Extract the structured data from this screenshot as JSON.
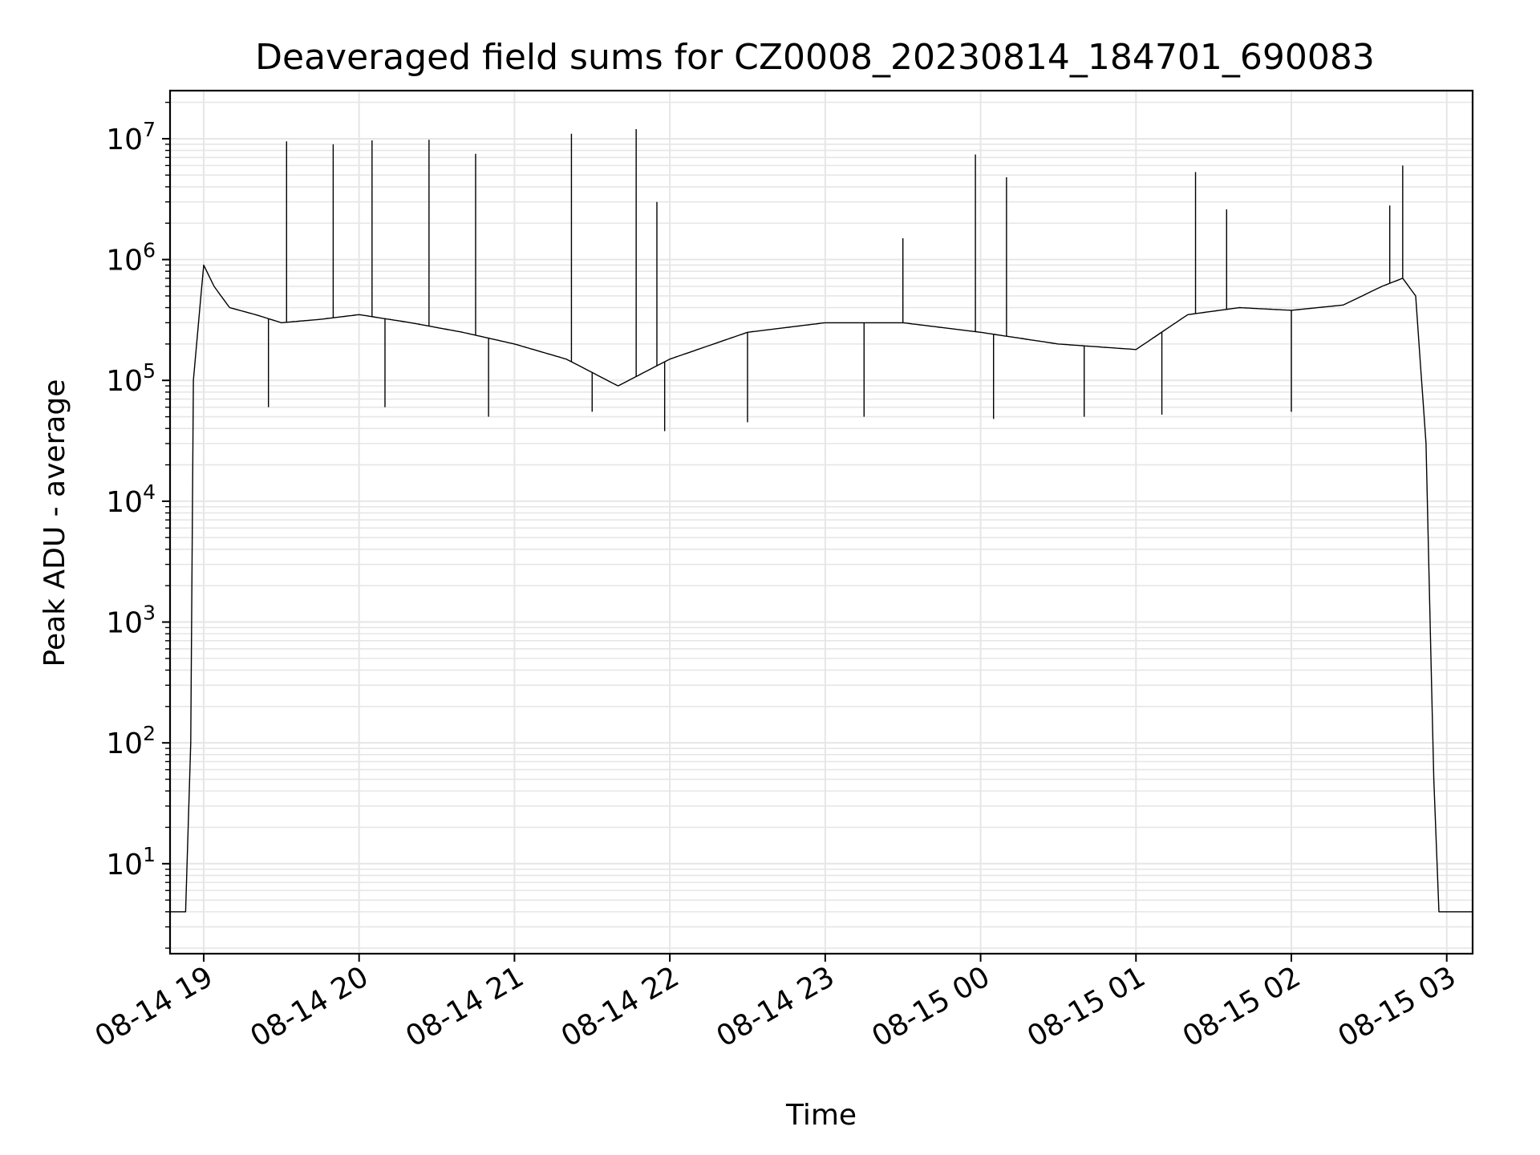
{
  "chart_data": {
    "type": "line",
    "title": "Deaveraged field sums for CZ0008_20230814_184701_690083",
    "xlabel": "Time",
    "ylabel": "Peak ADU - average",
    "yscale": "log",
    "ylim": [
      1.8,
      25000000
    ],
    "xlim": [
      "2023-08-14 18:47",
      "2023-08-15 03:10"
    ],
    "grid": true,
    "grid_minor": true,
    "legend": "none",
    "line_color": "#000000",
    "grid_color": "#e6e6e6",
    "x_ticks": [
      {
        "x": "2023-08-14 19:00",
        "label": "08-14 19"
      },
      {
        "x": "2023-08-14 20:00",
        "label": "08-14 20"
      },
      {
        "x": "2023-08-14 21:00",
        "label": "08-14 21"
      },
      {
        "x": "2023-08-14 22:00",
        "label": "08-14 22"
      },
      {
        "x": "2023-08-14 23:00",
        "label": "08-14 23"
      },
      {
        "x": "2023-08-15 00:00",
        "label": "08-15 00"
      },
      {
        "x": "2023-08-15 01:00",
        "label": "08-15 01"
      },
      {
        "x": "2023-08-15 02:00",
        "label": "08-15 02"
      },
      {
        "x": "2023-08-15 03:00",
        "label": "08-15 03"
      }
    ],
    "y_ticks": [
      {
        "value": 10,
        "base": "10",
        "exp": "1"
      },
      {
        "value": 100,
        "base": "10",
        "exp": "2"
      },
      {
        "value": 1000,
        "base": "10",
        "exp": "3"
      },
      {
        "value": 10000,
        "base": "10",
        "exp": "4"
      },
      {
        "value": 100000,
        "base": "10",
        "exp": "5"
      },
      {
        "value": 1000000,
        "base": "10",
        "exp": "6"
      },
      {
        "value": 10000000,
        "base": "10",
        "exp": "7"
      }
    ],
    "series": [
      {
        "x": [
          "2023-08-14 18:47",
          "2023-08-14 18:53",
          "2023-08-14 18:55",
          "2023-08-14 18:56",
          "2023-08-14 18:58",
          "2023-08-14 19:00",
          "2023-08-14 19:04",
          "2023-08-14 19:10",
          "2023-08-14 19:20",
          "2023-08-14 19:30",
          "2023-08-14 19:45",
          "2023-08-14 20:00",
          "2023-08-14 20:20",
          "2023-08-14 20:40",
          "2023-08-14 21:00",
          "2023-08-14 21:20",
          "2023-08-14 21:40",
          "2023-08-14 22:00",
          "2023-08-14 22:30",
          "2023-08-14 23:00",
          "2023-08-14 23:30",
          "2023-08-15 00:00",
          "2023-08-15 00:30",
          "2023-08-15 01:00",
          "2023-08-15 01:20",
          "2023-08-15 01:40",
          "2023-08-15 02:00",
          "2023-08-15 02:20",
          "2023-08-15 02:35",
          "2023-08-15 02:43",
          "2023-08-15 02:48",
          "2023-08-15 02:52",
          "2023-08-15 02:55",
          "2023-08-15 02:57",
          "2023-08-15 03:10"
        ],
        "values": [
          4,
          4,
          100,
          100000,
          300000,
          900000,
          600000,
          400000,
          350000,
          300000,
          320000,
          350000,
          300000,
          250000,
          200000,
          150000,
          90000,
          150000,
          250000,
          300000,
          300000,
          250000,
          200000,
          180000,
          350000,
          400000,
          380000,
          420000,
          600000,
          700000,
          500000,
          30000,
          50,
          4,
          4
        ],
        "spikes": [
          {
            "x": "2023-08-14 19:32",
            "value": 9500000
          },
          {
            "x": "2023-08-14 19:50",
            "value": 9000000
          },
          {
            "x": "2023-08-14 20:05",
            "value": 9700000
          },
          {
            "x": "2023-08-14 20:27",
            "value": 9800000
          },
          {
            "x": "2023-08-14 20:45",
            "value": 7500000
          },
          {
            "x": "2023-08-14 21:22",
            "value": 11000000
          },
          {
            "x": "2023-08-14 21:47",
            "value": 12000000
          },
          {
            "x": "2023-08-14 21:55",
            "value": 3000000
          },
          {
            "x": "2023-08-14 23:30",
            "value": 1500000
          },
          {
            "x": "2023-08-14 23:58",
            "value": 7400000
          },
          {
            "x": "2023-08-15 00:10",
            "value": 4800000
          },
          {
            "x": "2023-08-15 01:23",
            "value": 5300000
          },
          {
            "x": "2023-08-15 01:35",
            "value": 2600000
          },
          {
            "x": "2023-08-15 02:38",
            "value": 2800000
          },
          {
            "x": "2023-08-15 02:43",
            "value": 6000000
          }
        ],
        "dips": [
          {
            "x": "2023-08-14 19:25",
            "value": 60000
          },
          {
            "x": "2023-08-14 20:10",
            "value": 60000
          },
          {
            "x": "2023-08-14 20:50",
            "value": 50000
          },
          {
            "x": "2023-08-14 21:30",
            "value": 55000
          },
          {
            "x": "2023-08-14 21:58",
            "value": 38000
          },
          {
            "x": "2023-08-14 22:30",
            "value": 45000
          },
          {
            "x": "2023-08-14 23:15",
            "value": 50000
          },
          {
            "x": "2023-08-15 00:05",
            "value": 48000
          },
          {
            "x": "2023-08-15 00:40",
            "value": 50000
          },
          {
            "x": "2023-08-15 01:10",
            "value": 52000
          },
          {
            "x": "2023-08-15 02:00",
            "value": 55000
          }
        ]
      }
    ]
  }
}
